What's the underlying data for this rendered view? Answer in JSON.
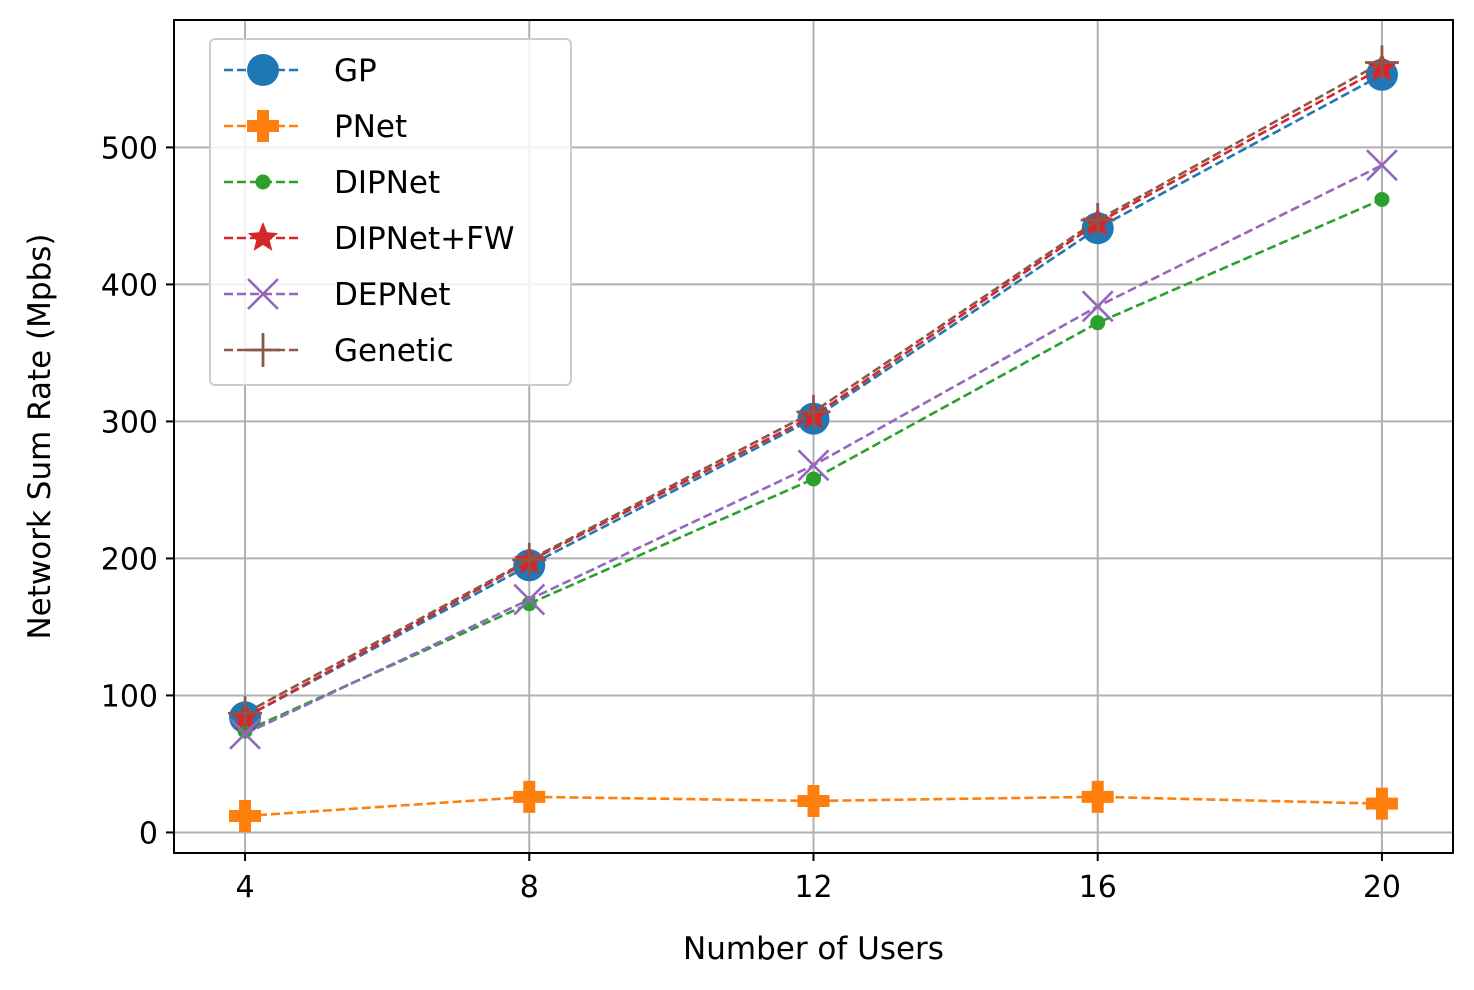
{
  "chart_data": {
    "type": "line",
    "title": "",
    "xlabel": "Number of Users",
    "ylabel": "Network Sum Rate (Mpbs)",
    "x": [
      4,
      8,
      12,
      16,
      20
    ],
    "xlim": [
      3,
      21
    ],
    "ylim": [
      -15,
      593
    ],
    "xticks": [
      4,
      8,
      12,
      16,
      20
    ],
    "yticks": [
      0,
      100,
      200,
      300,
      400,
      500
    ],
    "grid": true,
    "legend_position": "top-left",
    "series": [
      {
        "name": "GP",
        "values": [
          84,
          195,
          302,
          441,
          553
        ],
        "color": "#1f77b4",
        "marker": "circle"
      },
      {
        "name": "PNet",
        "values": [
          12,
          26,
          23,
          26,
          21
        ],
        "color": "#ff7f0e",
        "marker": "plus-filled"
      },
      {
        "name": "DIPNet",
        "values": [
          74,
          167,
          258,
          372,
          462
        ],
        "color": "#2ca02c",
        "marker": "dot"
      },
      {
        "name": "DIPNet+FW",
        "values": [
          84,
          198,
          304,
          445,
          558
        ],
        "color": "#d62728",
        "marker": "star"
      },
      {
        "name": "DEPNet",
        "values": [
          72,
          170,
          268,
          384,
          487
        ],
        "color": "#9467bd",
        "marker": "x"
      },
      {
        "name": "Genetic",
        "values": [
          87,
          199,
          307,
          447,
          562
        ],
        "color": "#8c564b",
        "marker": "plus"
      }
    ]
  }
}
